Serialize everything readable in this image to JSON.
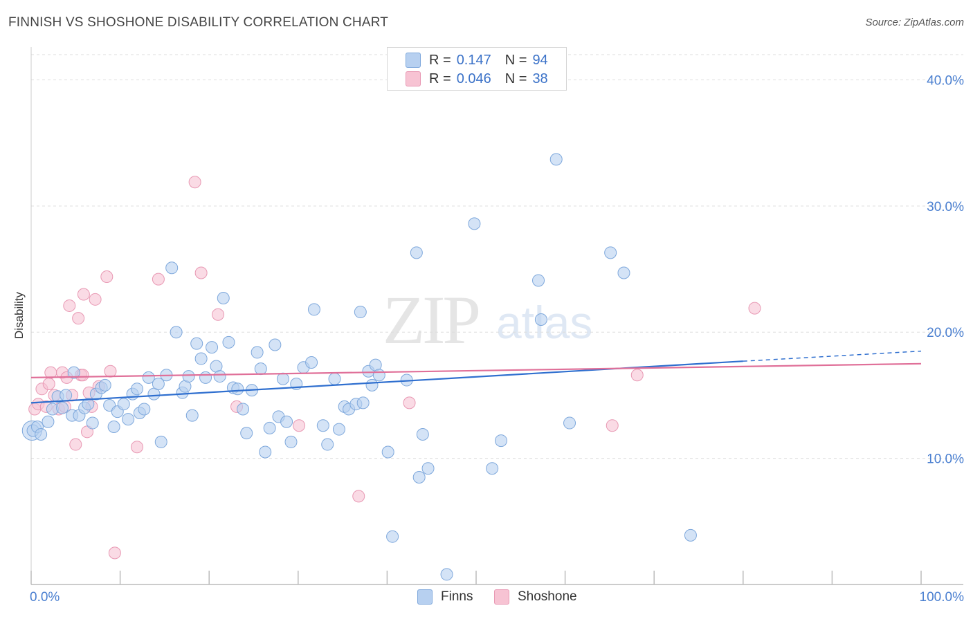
{
  "header": {
    "title": "FINNISH VS SHOSHONE DISABILITY CORRELATION CHART",
    "source": "Source: ZipAtlas.com"
  },
  "watermark": {
    "zip": "ZIP",
    "atlas": "atlas"
  },
  "legend_top": {
    "rows": [
      {
        "r_label": "R =",
        "r_value": "0.147",
        "n_label": "N =",
        "n_value": "94"
      },
      {
        "r_label": "R =",
        "r_value": "0.046",
        "n_label": "N =",
        "n_value": "38"
      }
    ]
  },
  "legend_bottom": {
    "items": [
      "Finns",
      "Shoshone"
    ]
  },
  "colors": {
    "finns_fill": "#b7d0f0",
    "finns_stroke": "#7ea8dc",
    "finns_line": "#2f6fcf",
    "shoshone_fill": "#f7c3d3",
    "shoshone_stroke": "#e898b3",
    "shoshone_line": "#e07099",
    "tick_label": "#4a7fd0",
    "grid": "#dddddd"
  },
  "chart_data": {
    "type": "scatter",
    "title": "FINNISH VS SHOSHONE DISABILITY CORRELATION CHART",
    "xlabel": "",
    "ylabel": "Disability",
    "xlim": [
      0,
      100
    ],
    "ylim": [
      0,
      42
    ],
    "x_tick_labels": [
      "0.0%",
      "100.0%"
    ],
    "y_ticks": [
      10,
      20,
      30,
      40
    ],
    "y_tick_labels": [
      "10.0%",
      "20.0%",
      "30.0%",
      "40.0%"
    ],
    "grid": true,
    "legend_position": "top-center",
    "series": [
      {
        "name": "Finns",
        "r": 0.147,
        "n": 94,
        "trend": {
          "x0": 0,
          "y0": 14.4,
          "x1": 80,
          "y1": 17.7,
          "dash_to_x": 100,
          "dash_to_y": 18.5
        },
        "points": [
          [
            0.2,
            12.2
          ],
          [
            0.7,
            12.5
          ],
          [
            1.1,
            11.9
          ],
          [
            1.9,
            12.9
          ],
          [
            2.4,
            13.9
          ],
          [
            3.0,
            14.9
          ],
          [
            3.5,
            14.0
          ],
          [
            3.9,
            15.0
          ],
          [
            4.6,
            13.4
          ],
          [
            4.8,
            16.8
          ],
          [
            5.4,
            13.4
          ],
          [
            6.0,
            14.0
          ],
          [
            6.4,
            14.3
          ],
          [
            6.9,
            12.8
          ],
          [
            7.3,
            15.1
          ],
          [
            7.9,
            15.6
          ],
          [
            8.3,
            15.8
          ],
          [
            8.8,
            14.2
          ],
          [
            9.3,
            12.5
          ],
          [
            9.7,
            13.7
          ],
          [
            10.4,
            14.3
          ],
          [
            10.9,
            13.1
          ],
          [
            11.4,
            15.1
          ],
          [
            11.9,
            15.5
          ],
          [
            12.2,
            13.6
          ],
          [
            12.7,
            13.9
          ],
          [
            13.2,
            16.4
          ],
          [
            13.8,
            15.1
          ],
          [
            14.3,
            15.9
          ],
          [
            14.6,
            11.3
          ],
          [
            15.2,
            16.6
          ],
          [
            15.8,
            25.1
          ],
          [
            16.3,
            20.0
          ],
          [
            17.0,
            15.2
          ],
          [
            17.3,
            15.7
          ],
          [
            17.7,
            16.5
          ],
          [
            18.1,
            13.4
          ],
          [
            18.6,
            19.1
          ],
          [
            19.1,
            17.9
          ],
          [
            19.6,
            16.4
          ],
          [
            20.3,
            18.8
          ],
          [
            20.8,
            17.3
          ],
          [
            21.2,
            16.5
          ],
          [
            21.6,
            22.7
          ],
          [
            22.2,
            19.2
          ],
          [
            22.7,
            15.6
          ],
          [
            23.2,
            15.5
          ],
          [
            23.8,
            13.9
          ],
          [
            24.2,
            12.0
          ],
          [
            24.8,
            15.4
          ],
          [
            25.4,
            18.4
          ],
          [
            25.8,
            17.1
          ],
          [
            26.3,
            10.5
          ],
          [
            26.8,
            12.4
          ],
          [
            27.4,
            19.0
          ],
          [
            27.8,
            13.3
          ],
          [
            28.3,
            16.3
          ],
          [
            28.7,
            12.9
          ],
          [
            29.2,
            11.3
          ],
          [
            29.8,
            15.9
          ],
          [
            30.6,
            17.2
          ],
          [
            31.5,
            17.6
          ],
          [
            31.8,
            21.8
          ],
          [
            32.8,
            12.6
          ],
          [
            33.3,
            11.1
          ],
          [
            34.1,
            16.3
          ],
          [
            34.6,
            12.3
          ],
          [
            35.2,
            14.1
          ],
          [
            35.7,
            13.9
          ],
          [
            36.5,
            14.3
          ],
          [
            37.0,
            21.6
          ],
          [
            37.3,
            14.4
          ],
          [
            37.9,
            16.9
          ],
          [
            38.3,
            15.8
          ],
          [
            38.7,
            17.4
          ],
          [
            39.1,
            16.6
          ],
          [
            40.1,
            10.5
          ],
          [
            40.6,
            3.8
          ],
          [
            42.2,
            16.2
          ],
          [
            43.3,
            26.3
          ],
          [
            43.6,
            8.5
          ],
          [
            44.0,
            11.9
          ],
          [
            44.6,
            9.2
          ],
          [
            46.7,
            0.8
          ],
          [
            49.8,
            28.6
          ],
          [
            51.8,
            9.2
          ],
          [
            52.8,
            11.4
          ],
          [
            57.0,
            24.1
          ],
          [
            57.3,
            21.0
          ],
          [
            59.0,
            33.7
          ],
          [
            60.5,
            12.8
          ],
          [
            65.1,
            26.3
          ],
          [
            66.6,
            24.7
          ],
          [
            74.1,
            3.9
          ]
        ]
      },
      {
        "name": "Shoshone",
        "r": 0.046,
        "n": 38,
        "trend": {
          "x0": 0,
          "y0": 16.4,
          "x1": 100,
          "y1": 17.5
        },
        "points": [
          [
            0.4,
            13.9
          ],
          [
            0.8,
            14.3
          ],
          [
            1.2,
            15.5
          ],
          [
            1.7,
            14.1
          ],
          [
            2.0,
            15.9
          ],
          [
            2.2,
            16.8
          ],
          [
            2.6,
            15.0
          ],
          [
            3.1,
            13.9
          ],
          [
            3.5,
            16.8
          ],
          [
            3.8,
            14.1
          ],
          [
            4.0,
            16.4
          ],
          [
            4.3,
            22.1
          ],
          [
            4.6,
            15.0
          ],
          [
            5.0,
            11.1
          ],
          [
            5.3,
            21.1
          ],
          [
            5.6,
            16.6
          ],
          [
            5.8,
            16.6
          ],
          [
            5.9,
            23.0
          ],
          [
            6.3,
            12.1
          ],
          [
            6.5,
            15.2
          ],
          [
            6.8,
            14.1
          ],
          [
            7.2,
            22.6
          ],
          [
            7.6,
            15.7
          ],
          [
            8.5,
            24.4
          ],
          [
            8.9,
            16.9
          ],
          [
            9.4,
            2.5
          ],
          [
            11.9,
            10.9
          ],
          [
            14.3,
            24.2
          ],
          [
            18.4,
            31.9
          ],
          [
            19.1,
            24.7
          ],
          [
            21.0,
            21.4
          ],
          [
            23.1,
            14.1
          ],
          [
            30.1,
            12.6
          ],
          [
            36.8,
            7.0
          ],
          [
            42.5,
            14.4
          ],
          [
            65.3,
            12.6
          ],
          [
            68.1,
            16.6
          ],
          [
            81.3,
            21.9
          ]
        ]
      }
    ]
  }
}
